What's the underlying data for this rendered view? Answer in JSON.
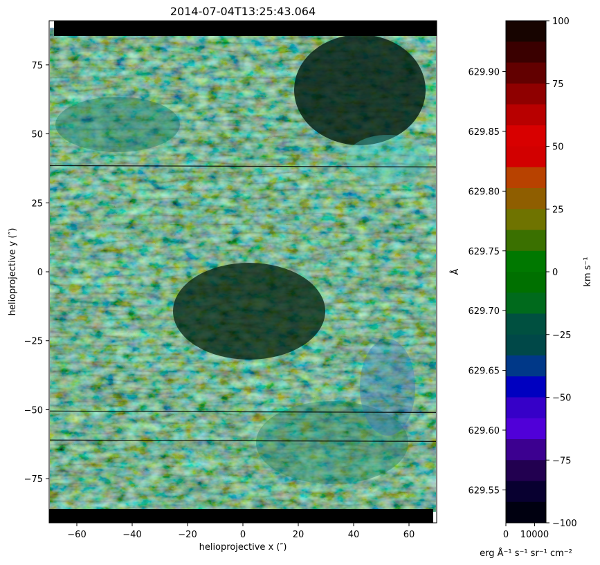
{
  "chart_data": [
    {
      "type": "heatmap",
      "title": "2014-07-04T13:25:43.064",
      "xlabel": "helioprojective x (″)",
      "ylabel": "helioprojective y (″)",
      "xlim": [
        -70,
        70
      ],
      "ylim": [
        -91,
        91
      ],
      "xticks": [
        -60,
        -40,
        -20,
        0,
        20,
        40,
        60
      ],
      "yticks": [
        75,
        50,
        25,
        0,
        -25,
        -50,
        -75
      ],
      "image_description_colors": {
        "dominant": [
          "#0a2a18",
          "#1f6a4a",
          "#c98a2a",
          "#e8d35a",
          "#39c4c4",
          "#2a6ec8"
        ],
        "dark_rows_y": [
          38.5,
          -50.5,
          -61.0
        ]
      }
    },
    {
      "type": "bar",
      "title": "",
      "colorbar": {
        "left_axis_label": "Å",
        "right_axis_label": "km s⁻¹",
        "wavelength_ticks": [
          629.9,
          629.85,
          629.8,
          629.75,
          629.7,
          629.65,
          629.6,
          629.55
        ],
        "wavelength_tick_labels": [
          "629.90",
          "629.85",
          "629.80",
          "629.75",
          "629.70",
          "629.65",
          "629.60",
          "629.55"
        ],
        "velocity_ticks": [
          100,
          75,
          50,
          25,
          0,
          -25,
          -50,
          -75,
          -100
        ],
        "velocity_tick_labels": [
          "100",
          "75",
          "50",
          "25",
          "0",
          "−25",
          "−50",
          "−75",
          "−100"
        ],
        "velocity_range": [
          -100,
          100
        ],
        "bins_top_to_bottom": [
          "#170400",
          "#3a0000",
          "#620000",
          "#8f0000",
          "#b80000",
          "#d80000",
          "#d20000",
          "#b84200",
          "#8f5e00",
          "#6f7300",
          "#3a7000",
          "#007800",
          "#007000",
          "#006a1c",
          "#005040",
          "#004848",
          "#003888",
          "#0000c0",
          "#3600c8",
          "#5000d8",
          "#3c0090",
          "#220050",
          "#080030",
          "#000010"
        ]
      },
      "xlabel": "erg Å⁻¹ s⁻¹ sr⁻¹ cm⁻²",
      "xticks": [
        0,
        10000
      ],
      "xtick_labels": [
        "0",
        "10000"
      ]
    }
  ]
}
